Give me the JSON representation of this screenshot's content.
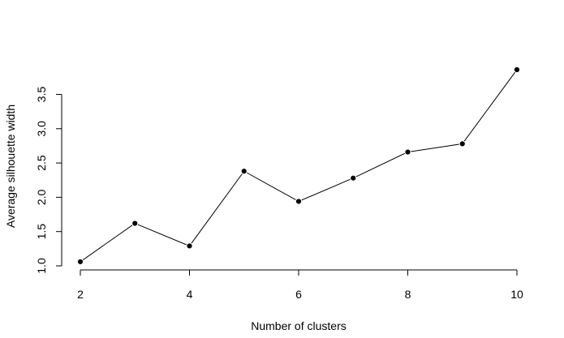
{
  "chart_data": {
    "type": "line",
    "title": "",
    "xlabel": "Number of clusters",
    "ylabel": "Average silhouette width",
    "x": [
      2,
      3,
      4,
      5,
      6,
      7,
      8,
      9,
      10
    ],
    "series": [
      {
        "values": [
          1.06,
          1.62,
          1.29,
          2.38,
          1.94,
          2.28,
          2.66,
          2.78,
          3.86
        ]
      }
    ],
    "xticks": [
      2,
      4,
      6,
      8,
      10
    ],
    "xtick_labels": [
      "2",
      "4",
      "6",
      "8",
      "10"
    ],
    "yticks": [
      1.0,
      1.5,
      2.0,
      2.5,
      3.0,
      3.5
    ],
    "ytick_labels": [
      "1.0",
      "1.5",
      "2.0",
      "2.5",
      "3.0",
      "3.5"
    ],
    "xlim": [
      2,
      10
    ],
    "ylim": [
      1.0,
      3.86
    ],
    "grid": false,
    "legend": "none",
    "markers": "filled-circle",
    "colors": {
      "line": "#000000",
      "marker": "#000000",
      "background": "#ffffff"
    }
  }
}
